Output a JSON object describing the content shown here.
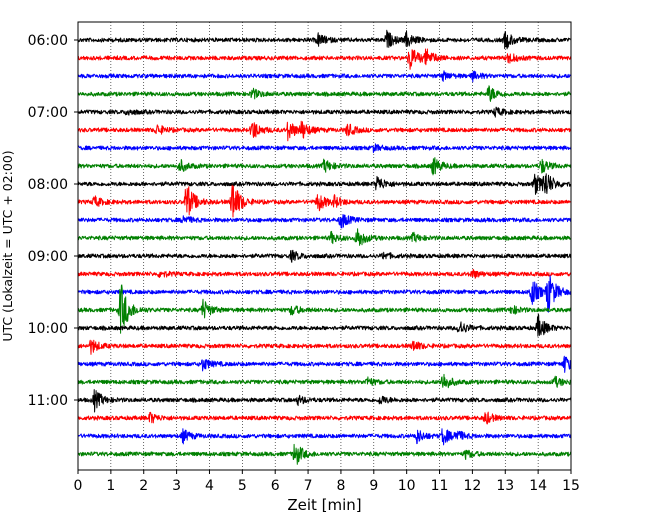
{
  "chart_data": {
    "type": "line",
    "title": "",
    "xlabel": "Zeit  [min]",
    "ylabel": "UTC (Lokalzeit = UTC + 02:00)",
    "xlim": [
      0,
      15
    ],
    "x_ticks": [
      "0",
      "1",
      "2",
      "3",
      "4",
      "5",
      "6",
      "7",
      "8",
      "9",
      "10",
      "11",
      "12",
      "13",
      "14",
      "15"
    ],
    "y_ticks": [
      {
        "label": "06:00",
        "row": 0
      },
      {
        "label": "07:00",
        "row": 4
      },
      {
        "label": "08:00",
        "row": 8
      },
      {
        "label": "09:00",
        "row": 12
      },
      {
        "label": "10:00",
        "row": 16
      },
      {
        "label": "11:00",
        "row": 20
      }
    ],
    "grid": "vertical dotted lines at each minute",
    "trace_colors": [
      "#000000",
      "#ff0000",
      "#0000ff",
      "#008000"
    ],
    "traces": [
      {
        "start": "06:00",
        "color": "#000000",
        "events": [
          {
            "t": 7.3,
            "a": 6
          },
          {
            "t": 9.4,
            "a": 8
          },
          {
            "t": 10.0,
            "a": 7
          },
          {
            "t": 13.0,
            "a": 9
          }
        ]
      },
      {
        "start": "06:15",
        "color": "#ff0000",
        "events": [
          {
            "t": 10.1,
            "a": 13
          },
          {
            "t": 10.6,
            "a": 8
          },
          {
            "t": 13.1,
            "a": 5
          }
        ]
      },
      {
        "start": "06:30",
        "color": "#0000ff",
        "events": [
          {
            "t": 11.1,
            "a": 4
          },
          {
            "t": 12.0,
            "a": 4
          }
        ]
      },
      {
        "start": "06:45",
        "color": "#008000",
        "events": [
          {
            "t": 5.3,
            "a": 5
          },
          {
            "t": 12.5,
            "a": 8
          }
        ]
      },
      {
        "start": "07:00",
        "color": "#000000",
        "events": [
          {
            "t": 1.5,
            "a": 3
          },
          {
            "t": 12.7,
            "a": 4
          }
        ]
      },
      {
        "start": "07:15",
        "color": "#ff0000",
        "events": [
          {
            "t": 2.4,
            "a": 5
          },
          {
            "t": 5.3,
            "a": 10
          },
          {
            "t": 6.4,
            "a": 10
          },
          {
            "t": 6.8,
            "a": 8
          },
          {
            "t": 8.2,
            "a": 6
          }
        ]
      },
      {
        "start": "07:30",
        "color": "#0000ff",
        "events": [
          {
            "t": 9.0,
            "a": 3
          }
        ]
      },
      {
        "start": "07:45",
        "color": "#008000",
        "events": [
          {
            "t": 3.1,
            "a": 6
          },
          {
            "t": 7.5,
            "a": 6
          },
          {
            "t": 10.8,
            "a": 9
          },
          {
            "t": 14.1,
            "a": 7
          }
        ]
      },
      {
        "start": "08:00",
        "color": "#000000",
        "events": [
          {
            "t": 9.1,
            "a": 8
          },
          {
            "t": 13.9,
            "a": 10
          },
          {
            "t": 14.2,
            "a": 13
          }
        ]
      },
      {
        "start": "08:15",
        "color": "#ff0000",
        "events": [
          {
            "t": 0.5,
            "a": 5
          },
          {
            "t": 3.3,
            "a": 20
          },
          {
            "t": 4.7,
            "a": 22
          },
          {
            "t": 7.3,
            "a": 9
          },
          {
            "t": 7.8,
            "a": 5
          }
        ]
      },
      {
        "start": "08:30",
        "color": "#0000ff",
        "events": [
          {
            "t": 3.2,
            "a": 4
          },
          {
            "t": 8.0,
            "a": 8
          }
        ]
      },
      {
        "start": "08:45",
        "color": "#008000",
        "events": [
          {
            "t": 7.7,
            "a": 5
          },
          {
            "t": 8.5,
            "a": 10
          },
          {
            "t": 10.2,
            "a": 4
          }
        ]
      },
      {
        "start": "09:00",
        "color": "#000000",
        "events": [
          {
            "t": 6.5,
            "a": 5
          },
          {
            "t": 9.3,
            "a": 3
          }
        ]
      },
      {
        "start": "09:15",
        "color": "#ff0000",
        "events": [
          {
            "t": 2.5,
            "a": 3
          },
          {
            "t": 12.0,
            "a": 4
          }
        ]
      },
      {
        "start": "09:30",
        "color": "#0000ff",
        "events": [
          {
            "t": 13.8,
            "a": 14
          },
          {
            "t": 14.3,
            "a": 20
          }
        ]
      },
      {
        "start": "09:45",
        "color": "#008000",
        "events": [
          {
            "t": 1.3,
            "a": 28
          },
          {
            "t": 3.8,
            "a": 10
          },
          {
            "t": 6.5,
            "a": 5
          },
          {
            "t": 13.2,
            "a": 4
          }
        ]
      },
      {
        "start": "10:00",
        "color": "#000000",
        "events": [
          {
            "t": 11.6,
            "a": 7
          },
          {
            "t": 14.0,
            "a": 12
          }
        ]
      },
      {
        "start": "10:15",
        "color": "#ff0000",
        "events": [
          {
            "t": 0.4,
            "a": 7
          },
          {
            "t": 10.2,
            "a": 5
          }
        ]
      },
      {
        "start": "10:30",
        "color": "#0000ff",
        "events": [
          {
            "t": 3.8,
            "a": 6
          },
          {
            "t": 14.8,
            "a": 8
          }
        ]
      },
      {
        "start": "10:45",
        "color": "#008000",
        "events": [
          {
            "t": 8.8,
            "a": 4
          },
          {
            "t": 11.1,
            "a": 9
          },
          {
            "t": 14.5,
            "a": 5
          }
        ]
      },
      {
        "start": "11:00",
        "color": "#000000",
        "events": [
          {
            "t": 0.5,
            "a": 10
          },
          {
            "t": 6.7,
            "a": 4
          },
          {
            "t": 9.2,
            "a": 4
          }
        ]
      },
      {
        "start": "11:15",
        "color": "#ff0000",
        "events": [
          {
            "t": 2.2,
            "a": 5
          },
          {
            "t": 12.4,
            "a": 6
          }
        ]
      },
      {
        "start": "11:30",
        "color": "#0000ff",
        "events": [
          {
            "t": 3.2,
            "a": 6
          },
          {
            "t": 10.3,
            "a": 7
          },
          {
            "t": 11.1,
            "a": 8
          },
          {
            "t": 11.5,
            "a": 5
          }
        ]
      },
      {
        "start": "11:45",
        "color": "#008000",
        "events": [
          {
            "t": 6.6,
            "a": 12
          },
          {
            "t": 11.8,
            "a": 4
          }
        ]
      }
    ]
  }
}
